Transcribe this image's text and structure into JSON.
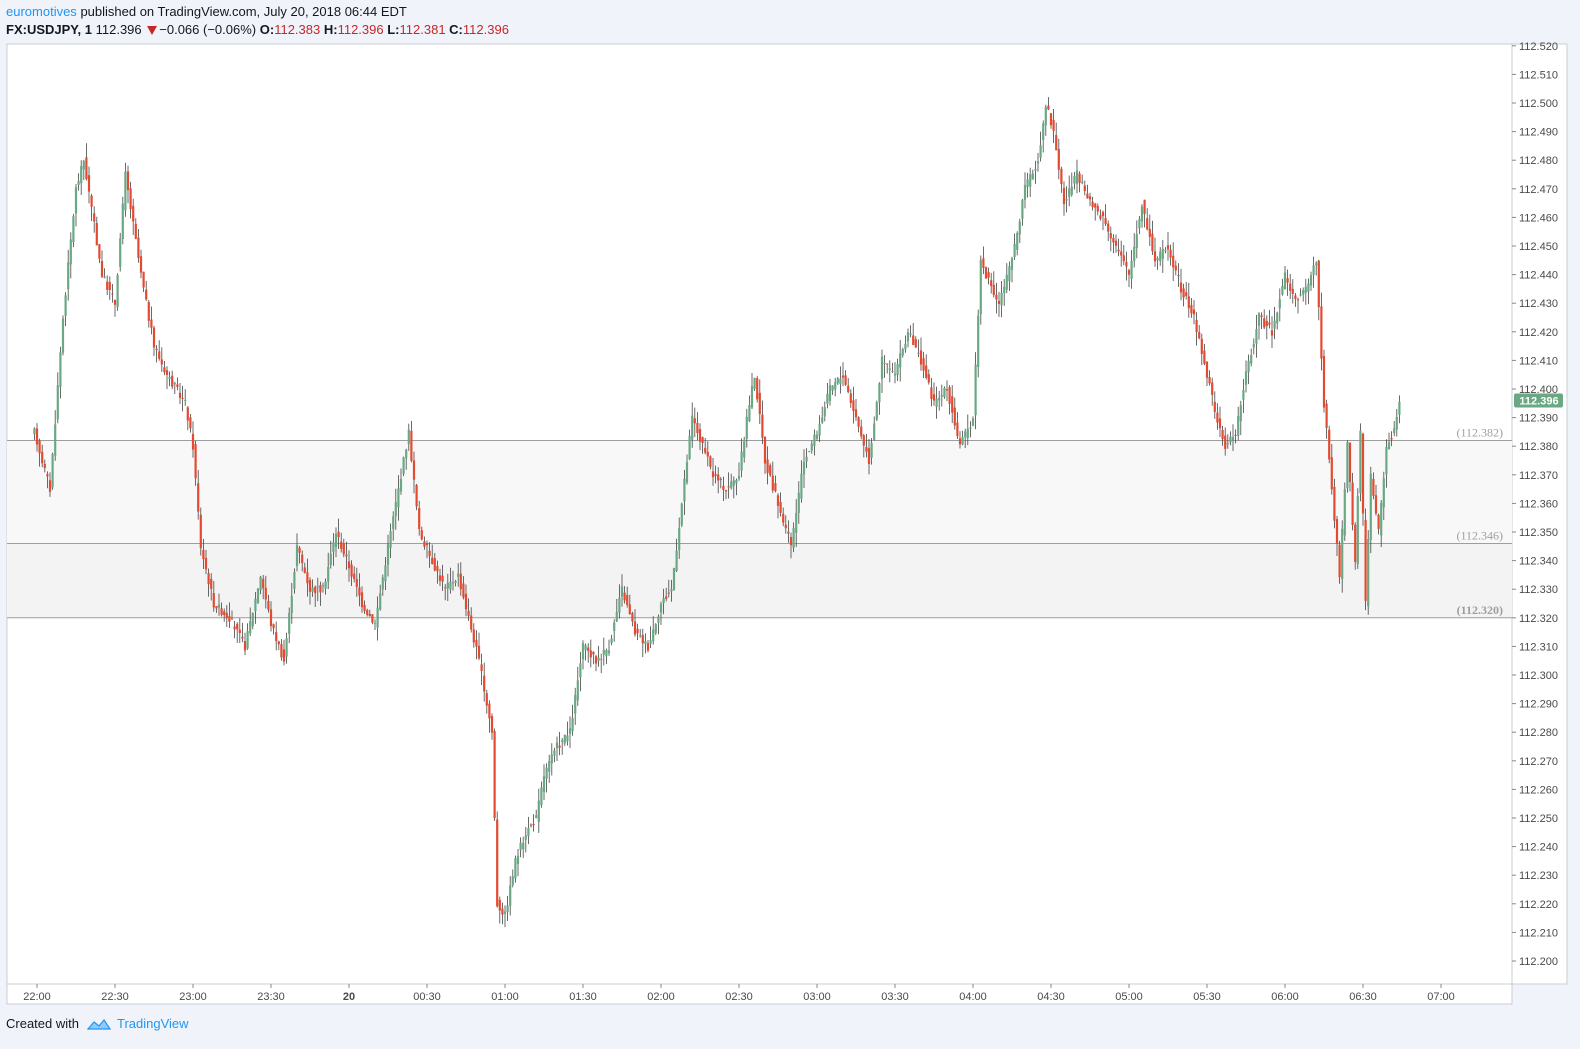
{
  "header": {
    "author": "euromotives",
    "published": "published on TradingView.com, July 20, 2018 06:44 EDT",
    "symbol": "FX:USDJPY, 1",
    "last": "112.396",
    "change": "−0.066 (−0.06%)",
    "o_label": "O:",
    "o_value": "112.383",
    "h_label": "H:",
    "h_value": "112.396",
    "l_label": "L:",
    "l_value": "112.381",
    "c_label": "C:",
    "c_value": "112.396"
  },
  "footer": {
    "created_with": "Created with",
    "brand": "TradingView"
  },
  "colors": {
    "up": "#6aa884",
    "down": "#e24b32",
    "wick": "#444444",
    "grid": "#e6e9ef",
    "price_badge": "#6aa884",
    "zone_fill": "#f3f3f3",
    "level_line": "#9e9e9e",
    "axis_text": "#4a4a4a"
  },
  "chart_data": {
    "type": "candlestick",
    "symbol": "FX:USDJPY",
    "timeframe": "1",
    "x_ticks": [
      "22:00",
      "22:30",
      "23:00",
      "23:30",
      "20",
      "00:30",
      "01:00",
      "01:30",
      "02:00",
      "02:30",
      "03:00",
      "03:30",
      "04:00",
      "04:30",
      "05:00",
      "05:30",
      "06:00",
      "06:30",
      "07:00"
    ],
    "y_ticks": [
      "112.520",
      "112.510",
      "112.500",
      "112.490",
      "112.480",
      "112.470",
      "112.460",
      "112.450",
      "112.440",
      "112.430",
      "112.420",
      "112.410",
      "112.400",
      "112.390",
      "112.380",
      "112.370",
      "112.360",
      "112.350",
      "112.340",
      "112.330",
      "112.320",
      "112.310",
      "112.300",
      "112.290",
      "112.280",
      "112.270",
      "112.260",
      "112.250",
      "112.240",
      "112.230",
      "112.220",
      "112.210",
      "112.200"
    ],
    "ylim": [
      112.195,
      112.52
    ],
    "last_price": "112.396",
    "levels": [
      {
        "value": 112.382,
        "label": "(112.382)"
      },
      {
        "value": 112.346,
        "label": "(112.346)"
      },
      {
        "value": 112.32,
        "label": "(112.320)"
      }
    ],
    "key_points": [
      {
        "time": "21:59",
        "price": 112.385
      },
      {
        "time": "22:05",
        "price": 112.365
      },
      {
        "time": "22:10",
        "price": 112.425
      },
      {
        "time": "22:15",
        "price": 112.47
      },
      {
        "time": "22:18",
        "price": 112.48
      },
      {
        "time": "22:25",
        "price": 112.44
      },
      {
        "time": "22:30",
        "price": 112.43
      },
      {
        "time": "22:34",
        "price": 112.475
      },
      {
        "time": "22:40",
        "price": 112.44
      },
      {
        "time": "22:45",
        "price": 112.415
      },
      {
        "time": "22:50",
        "price": 112.405
      },
      {
        "time": "22:57",
        "price": 112.395
      },
      {
        "time": "23:00",
        "price": 112.38
      },
      {
        "time": "23:03",
        "price": 112.345
      },
      {
        "time": "23:08",
        "price": 112.325
      },
      {
        "time": "23:14",
        "price": 112.32
      },
      {
        "time": "23:20",
        "price": 112.31
      },
      {
        "time": "23:26",
        "price": 112.335
      },
      {
        "time": "23:30",
        "price": 112.318
      },
      {
        "time": "23:35",
        "price": 112.305
      },
      {
        "time": "23:40",
        "price": 112.345
      },
      {
        "time": "23:45",
        "price": 112.33
      },
      {
        "time": "23:50",
        "price": 112.33
      },
      {
        "time": "23:55",
        "price": 112.35
      },
      {
        "time": "00:00",
        "price": 112.338
      },
      {
        "time": "00:05",
        "price": 112.325
      },
      {
        "time": "00:10",
        "price": 112.318
      },
      {
        "time": "00:15",
        "price": 112.345
      },
      {
        "time": "00:20",
        "price": 112.37
      },
      {
        "time": "00:23",
        "price": 112.385
      },
      {
        "time": "00:27",
        "price": 112.35
      },
      {
        "time": "00:32",
        "price": 112.34
      },
      {
        "time": "00:37",
        "price": 112.33
      },
      {
        "time": "00:42",
        "price": 112.335
      },
      {
        "time": "00:46",
        "price": 112.32
      },
      {
        "time": "00:50",
        "price": 112.305
      },
      {
        "time": "00:55",
        "price": 112.28
      },
      {
        "time": "00:57",
        "price": 112.22
      },
      {
        "time": "01:00",
        "price": 112.216
      },
      {
        "time": "01:04",
        "price": 112.235
      },
      {
        "time": "01:08",
        "price": 112.245
      },
      {
        "time": "01:12",
        "price": 112.25
      },
      {
        "time": "01:15",
        "price": 112.265
      },
      {
        "time": "01:20",
        "price": 112.275
      },
      {
        "time": "01:25",
        "price": 112.28
      },
      {
        "time": "01:30",
        "price": 112.31
      },
      {
        "time": "01:35",
        "price": 112.305
      },
      {
        "time": "01:40",
        "price": 112.31
      },
      {
        "time": "01:45",
        "price": 112.33
      },
      {
        "time": "01:50",
        "price": 112.315
      },
      {
        "time": "01:55",
        "price": 112.31
      },
      {
        "time": "02:00",
        "price": 112.325
      },
      {
        "time": "02:04",
        "price": 112.33
      },
      {
        "time": "02:08",
        "price": 112.36
      },
      {
        "time": "02:12",
        "price": 112.39
      },
      {
        "time": "02:16",
        "price": 112.38
      },
      {
        "time": "02:20",
        "price": 112.37
      },
      {
        "time": "02:25",
        "price": 112.365
      },
      {
        "time": "02:30",
        "price": 112.37
      },
      {
        "time": "02:33",
        "price": 112.39
      },
      {
        "time": "02:36",
        "price": 112.405
      },
      {
        "time": "02:40",
        "price": 112.375
      },
      {
        "time": "02:45",
        "price": 112.36
      },
      {
        "time": "02:50",
        "price": 112.345
      },
      {
        "time": "02:55",
        "price": 112.375
      },
      {
        "time": "03:00",
        "price": 112.385
      },
      {
        "time": "03:05",
        "price": 112.4
      },
      {
        "time": "03:10",
        "price": 112.405
      },
      {
        "time": "03:15",
        "price": 112.39
      },
      {
        "time": "03:20",
        "price": 112.375
      },
      {
        "time": "03:25",
        "price": 112.41
      },
      {
        "time": "03:30",
        "price": 112.405
      },
      {
        "time": "03:35",
        "price": 112.42
      },
      {
        "time": "03:40",
        "price": 112.41
      },
      {
        "time": "03:45",
        "price": 112.395
      },
      {
        "time": "03:50",
        "price": 112.4
      },
      {
        "time": "03:55",
        "price": 112.38
      },
      {
        "time": "04:00",
        "price": 112.39
      },
      {
        "time": "04:03",
        "price": 112.445
      },
      {
        "time": "04:07",
        "price": 112.435
      },
      {
        "time": "04:10",
        "price": 112.43
      },
      {
        "time": "04:15",
        "price": 112.445
      },
      {
        "time": "04:20",
        "price": 112.47
      },
      {
        "time": "04:25",
        "price": 112.48
      },
      {
        "time": "04:28",
        "price": 112.5
      },
      {
        "time": "04:31",
        "price": 112.49
      },
      {
        "time": "04:35",
        "price": 112.465
      },
      {
        "time": "04:40",
        "price": 112.475
      },
      {
        "time": "04:45",
        "price": 112.465
      },
      {
        "time": "04:50",
        "price": 112.46
      },
      {
        "time": "04:55",
        "price": 112.45
      },
      {
        "time": "05:00",
        "price": 112.44
      },
      {
        "time": "05:05",
        "price": 112.465
      },
      {
        "time": "05:10",
        "price": 112.445
      },
      {
        "time": "05:15",
        "price": 112.45
      },
      {
        "time": "05:20",
        "price": 112.435
      },
      {
        "time": "05:25",
        "price": 112.425
      },
      {
        "time": "05:30",
        "price": 112.405
      },
      {
        "time": "05:35",
        "price": 112.385
      },
      {
        "time": "05:37",
        "price": 112.38
      },
      {
        "time": "05:41",
        "price": 112.385
      },
      {
        "time": "05:45",
        "price": 112.405
      },
      {
        "time": "05:50",
        "price": 112.425
      },
      {
        "time": "05:55",
        "price": 112.42
      },
      {
        "time": "06:00",
        "price": 112.44
      },
      {
        "time": "06:04",
        "price": 112.43
      },
      {
        "time": "06:08",
        "price": 112.435
      },
      {
        "time": "06:12",
        "price": 112.445
      },
      {
        "time": "06:15",
        "price": 112.395
      },
      {
        "time": "06:18",
        "price": 112.365
      },
      {
        "time": "06:21",
        "price": 112.335
      },
      {
        "time": "06:24",
        "price": 112.38
      },
      {
        "time": "06:27",
        "price": 112.34
      },
      {
        "time": "06:29",
        "price": 112.385
      },
      {
        "time": "06:31",
        "price": 112.325
      },
      {
        "time": "06:33",
        "price": 112.37
      },
      {
        "time": "06:36",
        "price": 112.35
      },
      {
        "time": "06:39",
        "price": 112.38
      },
      {
        "time": "06:42",
        "price": 112.385
      },
      {
        "time": "06:44",
        "price": 112.396
      }
    ]
  }
}
